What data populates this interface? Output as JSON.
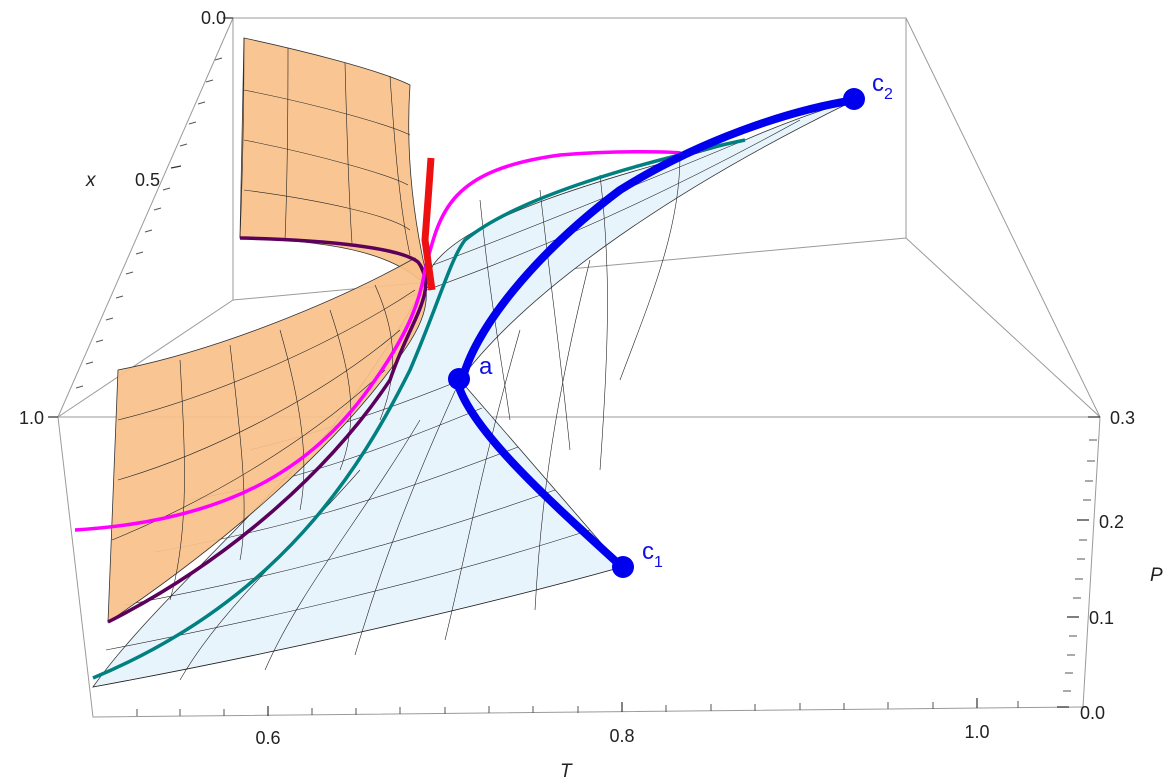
{
  "chart_data": {
    "type": "surface3d",
    "axes": {
      "T": {
        "label": "T",
        "range": [
          0.5,
          1.05
        ],
        "ticks": [
          "0.6",
          "0.8",
          "1.0"
        ]
      },
      "P": {
        "label": "P",
        "range": [
          0.0,
          0.3
        ],
        "ticks": [
          "0.0",
          "0.1",
          "0.2",
          "0.3"
        ]
      },
      "x": {
        "label": "x",
        "range": [
          0.0,
          1.0
        ],
        "ticks": [
          "0.0",
          "0.5",
          "1.0"
        ],
        "reversed": true
      }
    },
    "surfaces": [
      {
        "color": "#f9c089"
      },
      {
        "color": "#e8f4fc"
      }
    ],
    "curves": [
      {
        "color": "#0000ee"
      },
      {
        "color": "#008080"
      },
      {
        "color": "#ff00ff"
      },
      {
        "color": "#5c005c"
      },
      {
        "color": "#ee1111"
      }
    ],
    "points": [
      {
        "label": "c",
        "sub": "1",
        "T": 0.8,
        "P": 0.15,
        "x": 0.95
      },
      {
        "label": "c",
        "sub": "2",
        "T": 0.93,
        "P": 0.3,
        "x": 0.15
      },
      {
        "label": "a",
        "sub": "",
        "T": 0.7,
        "P": 0.22,
        "x": 0.65
      }
    ]
  }
}
